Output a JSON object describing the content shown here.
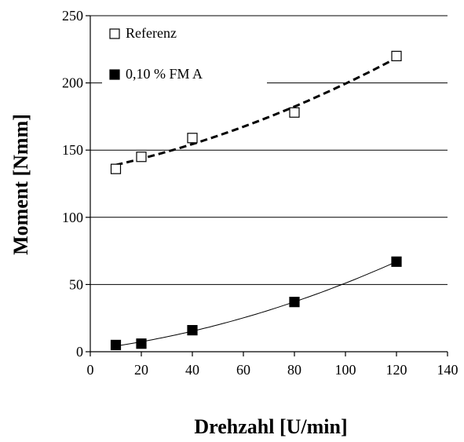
{
  "chart_data": {
    "type": "scatter",
    "xlabel": "Drehzahl [U/min]",
    "ylabel": "Moment [Nmm]",
    "xlim": [
      0,
      140
    ],
    "ylim": [
      0,
      250
    ],
    "xticks": [
      0,
      20,
      40,
      60,
      80,
      100,
      120,
      140
    ],
    "yticks": [
      0,
      50,
      100,
      150,
      200,
      250
    ],
    "grid": "horizontal",
    "legend_position": "top-left",
    "series": [
      {
        "name": "Referenz",
        "marker": "open-square",
        "color": "#000000",
        "trendline": "dashed",
        "x": [
          10,
          20,
          40,
          80,
          120
        ],
        "y": [
          136,
          145,
          159,
          178,
          220
        ]
      },
      {
        "name": "0,10 % FM A",
        "marker": "filled-square",
        "color": "#000000",
        "trendline": "solid-thin",
        "x": [
          10,
          20,
          40,
          80,
          120
        ],
        "y": [
          5,
          6,
          16,
          37,
          67
        ]
      }
    ]
  }
}
